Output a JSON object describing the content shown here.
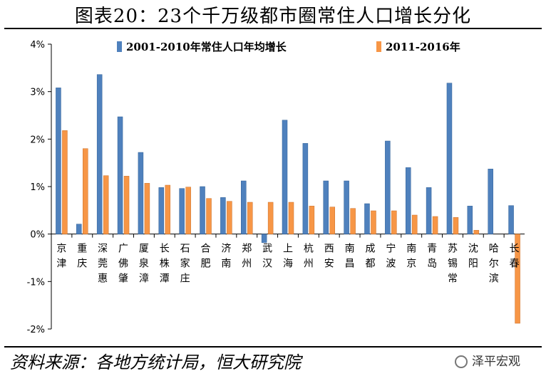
{
  "header": {
    "title": "图表20：23个千万级都市圈常住人口增长分化"
  },
  "footer": {
    "source": "资料来源：各地方统计局，恒大研究院",
    "watermark": "泽平宏观"
  },
  "colors": {
    "series1": "#4f81bd",
    "series2": "#f79646"
  },
  "chart_data": {
    "type": "bar",
    "title": "",
    "xlabel": "",
    "ylabel": "",
    "ylim": [
      -2,
      4
    ],
    "yticks": [
      "4%",
      "3%",
      "2%",
      "1%",
      "0%",
      "-1%",
      "-2%"
    ],
    "legend_position": "top-right",
    "grid": false,
    "categories": [
      "京津",
      "重庆",
      "深莞惠",
      "广佛肇",
      "厦泉漳",
      "长株潭",
      "石家庄",
      "合肥",
      "济南",
      "郑州",
      "武汉",
      "上海",
      "杭州",
      "西安",
      "南昌",
      "成都",
      "宁波",
      "南京",
      "青岛",
      "苏锡常",
      "沈阳",
      "哈尔滨",
      "长春"
    ],
    "series": [
      {
        "name": "2001-2010年常住人口年均增长",
        "values": [
          3.08,
          0.21,
          3.36,
          2.47,
          1.72,
          0.98,
          0.96,
          1.0,
          0.77,
          1.12,
          -0.18,
          2.4,
          1.91,
          1.12,
          1.12,
          0.64,
          1.96,
          1.4,
          0.98,
          3.18,
          0.59,
          1.37,
          0.6
        ]
      },
      {
        "name": "2011-2016年",
        "values": [
          2.18,
          1.8,
          1.23,
          1.22,
          1.07,
          1.03,
          0.99,
          0.75,
          0.69,
          0.67,
          0.67,
          0.67,
          0.59,
          0.57,
          0.54,
          0.49,
          0.49,
          0.4,
          0.37,
          0.35,
          0.08,
          0.0,
          -1.88
        ]
      }
    ]
  }
}
